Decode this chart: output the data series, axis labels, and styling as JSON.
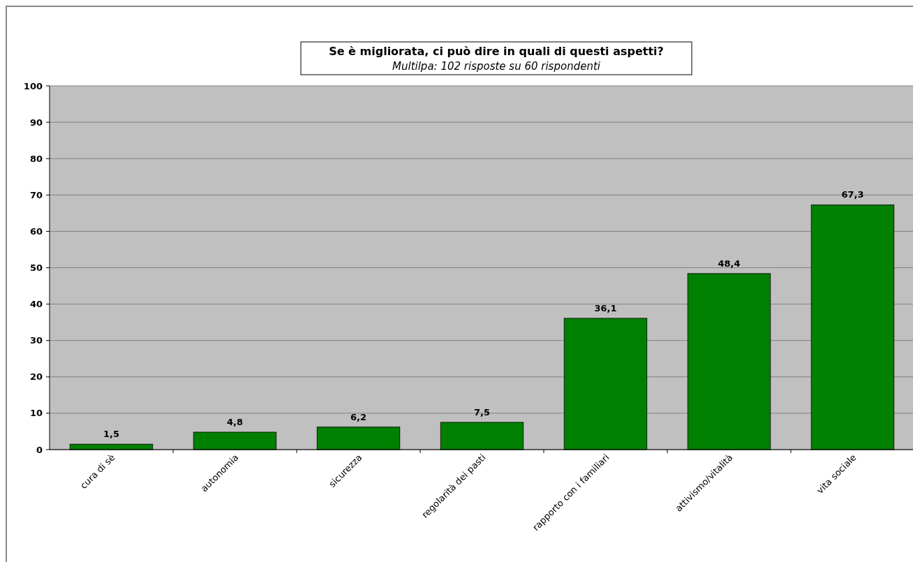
{
  "chart_data": {
    "type": "bar",
    "title": "Se è migliorata, ci può dire in quali di questi aspetti?",
    "subtitle": "Multilpa: 102 risposte su 60 rispondenti",
    "categories": [
      "cura di sè",
      "autonomia",
      "sicurezza",
      "regolarità dei pasti",
      "rapporto con i familiari",
      "attivismo/vitalità",
      "vita sociale"
    ],
    "values": [
      1.5,
      4.8,
      6.2,
      7.5,
      36.1,
      48.4,
      67.3
    ],
    "value_labels": [
      "1,5",
      "4,8",
      "6,2",
      "7,5",
      "36,1",
      "48,4",
      "67,3"
    ],
    "color": "#008000",
    "ylim": [
      0,
      100
    ],
    "yticks": [
      0,
      10,
      20,
      30,
      40,
      50,
      60,
      70,
      80,
      90,
      100
    ],
    "grid": "y"
  }
}
